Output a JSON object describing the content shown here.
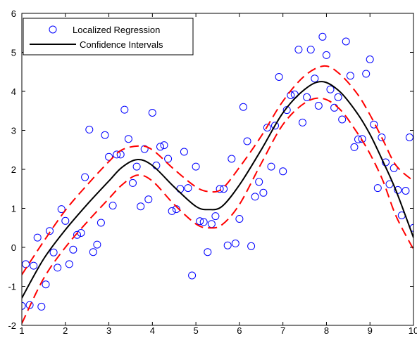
{
  "chart_data": {
    "type": "scatter",
    "title": "",
    "xlabel": "",
    "ylabel": "",
    "xlim": [
      1,
      10
    ],
    "ylim": [
      -2,
      6
    ],
    "grid": false,
    "legend": {
      "placement": "top-left",
      "entries": [
        "Localized Regression",
        "Confidence Intervals"
      ]
    },
    "x_ticks": [
      1,
      2,
      3,
      4,
      5,
      6,
      7,
      8,
      9,
      10
    ],
    "y_ticks": [
      -2,
      -1,
      0,
      1,
      2,
      3,
      4,
      5,
      6
    ],
    "colors": {
      "points": "#0000ff",
      "fit": "#000000",
      "interval": "#ff0000"
    },
    "series": [
      {
        "name": "Localized Regression",
        "type": "scatter",
        "marker": "open-circle",
        "points": [
          [
            1.0,
            -1.5
          ],
          [
            1.09,
            -0.43
          ],
          [
            1.18,
            -1.48
          ],
          [
            1.27,
            -0.47
          ],
          [
            1.36,
            0.25
          ],
          [
            1.45,
            -1.52
          ],
          [
            1.55,
            -0.95
          ],
          [
            1.64,
            0.42
          ],
          [
            1.73,
            -0.13
          ],
          [
            1.82,
            -0.52
          ],
          [
            1.91,
            0.98
          ],
          [
            2.0,
            0.68
          ],
          [
            2.09,
            -0.43
          ],
          [
            2.18,
            -0.06
          ],
          [
            2.27,
            0.32
          ],
          [
            2.36,
            0.37
          ],
          [
            2.45,
            1.8
          ],
          [
            2.55,
            3.02
          ],
          [
            2.64,
            -0.12
          ],
          [
            2.73,
            0.07
          ],
          [
            2.82,
            0.63
          ],
          [
            2.91,
            2.88
          ],
          [
            3.0,
            2.32
          ],
          [
            3.09,
            1.07
          ],
          [
            3.18,
            2.38
          ],
          [
            3.27,
            2.38
          ],
          [
            3.36,
            3.53
          ],
          [
            3.45,
            2.78
          ],
          [
            3.55,
            1.65
          ],
          [
            3.64,
            2.07
          ],
          [
            3.73,
            1.05
          ],
          [
            3.82,
            2.52
          ],
          [
            3.91,
            1.23
          ],
          [
            4.0,
            3.45
          ],
          [
            4.09,
            2.1
          ],
          [
            4.18,
            2.58
          ],
          [
            4.27,
            2.62
          ],
          [
            4.36,
            2.27
          ],
          [
            4.45,
            0.93
          ],
          [
            4.55,
            0.98
          ],
          [
            4.64,
            1.5
          ],
          [
            4.73,
            2.45
          ],
          [
            4.82,
            1.52
          ],
          [
            4.91,
            -0.72
          ],
          [
            5.0,
            2.07
          ],
          [
            5.09,
            0.67
          ],
          [
            5.18,
            0.65
          ],
          [
            5.27,
            -0.12
          ],
          [
            5.36,
            0.6
          ],
          [
            5.45,
            0.8
          ],
          [
            5.55,
            1.5
          ],
          [
            5.64,
            1.5
          ],
          [
            5.73,
            0.05
          ],
          [
            5.82,
            2.27
          ],
          [
            5.91,
            0.1
          ],
          [
            6.0,
            0.73
          ],
          [
            6.09,
            3.6
          ],
          [
            6.18,
            2.72
          ],
          [
            6.27,
            0.03
          ],
          [
            6.36,
            1.3
          ],
          [
            6.45,
            1.68
          ],
          [
            6.55,
            1.4
          ],
          [
            6.64,
            3.07
          ],
          [
            6.73,
            2.07
          ],
          [
            6.82,
            3.12
          ],
          [
            6.91,
            4.37
          ],
          [
            7.0,
            1.95
          ],
          [
            7.09,
            3.52
          ],
          [
            7.18,
            3.9
          ],
          [
            7.27,
            3.92
          ],
          [
            7.36,
            5.07
          ],
          [
            7.45,
            3.2
          ],
          [
            7.55,
            3.85
          ],
          [
            7.64,
            5.07
          ],
          [
            7.73,
            4.33
          ],
          [
            7.82,
            3.63
          ],
          [
            7.91,
            5.4
          ],
          [
            8.0,
            4.93
          ],
          [
            8.09,
            4.05
          ],
          [
            8.18,
            3.58
          ],
          [
            8.27,
            3.85
          ],
          [
            8.36,
            3.28
          ],
          [
            8.45,
            5.28
          ],
          [
            8.55,
            4.4
          ],
          [
            8.64,
            2.57
          ],
          [
            8.73,
            2.77
          ],
          [
            8.82,
            2.78
          ],
          [
            8.91,
            4.45
          ],
          [
            9.0,
            4.82
          ],
          [
            9.09,
            3.15
          ],
          [
            9.18,
            1.52
          ],
          [
            9.27,
            2.82
          ],
          [
            9.36,
            2.18
          ],
          [
            9.45,
            1.62
          ],
          [
            9.55,
            2.03
          ],
          [
            9.64,
            1.47
          ],
          [
            9.73,
            0.82
          ],
          [
            9.82,
            1.45
          ],
          [
            9.91,
            2.82
          ],
          [
            10.0,
            0.5
          ]
        ]
      },
      {
        "name": "Confidence Intervals",
        "type": "line",
        "style": "solid",
        "role": "fit",
        "x": [
          1.0,
          1.5,
          2.0,
          2.5,
          3.0,
          3.3,
          3.65,
          4.0,
          4.5,
          5.0,
          5.3,
          5.6,
          6.0,
          6.5,
          7.0,
          7.5,
          7.9,
          8.3,
          8.7,
          9.0,
          9.3,
          9.6,
          10.0
        ],
        "y": [
          -1.3,
          -0.3,
          0.45,
          1.1,
          1.7,
          2.05,
          2.25,
          2.1,
          1.55,
          1.05,
          0.97,
          1.05,
          1.6,
          2.5,
          3.45,
          4.05,
          4.25,
          4.0,
          3.45,
          2.9,
          2.2,
          1.45,
          0.25
        ]
      },
      {
        "name": "Confidence Intervals",
        "type": "line",
        "style": "dashed",
        "role": "upper",
        "x": [
          1.0,
          1.5,
          2.0,
          2.5,
          3.0,
          3.3,
          3.7,
          4.0,
          4.5,
          5.0,
          5.3,
          5.6,
          6.0,
          6.5,
          7.0,
          7.5,
          7.95,
          8.3,
          8.7,
          9.0,
          9.3,
          9.6,
          10.0
        ],
        "y": [
          -0.7,
          0.15,
          0.95,
          1.6,
          2.2,
          2.5,
          2.6,
          2.5,
          2.0,
          1.55,
          1.43,
          1.5,
          2.05,
          2.85,
          3.75,
          4.4,
          4.65,
          4.45,
          3.95,
          3.4,
          2.75,
          2.1,
          1.7
        ]
      },
      {
        "name": "Confidence Intervals",
        "type": "line",
        "style": "dashed",
        "role": "lower",
        "x": [
          1.0,
          1.5,
          2.0,
          2.5,
          3.0,
          3.3,
          3.65,
          4.0,
          4.5,
          5.0,
          5.3,
          5.6,
          6.0,
          6.5,
          7.0,
          7.5,
          7.9,
          8.3,
          8.7,
          9.0,
          9.3,
          9.6,
          10.0
        ],
        "y": [
          -1.95,
          -0.8,
          0.0,
          0.65,
          1.25,
          1.6,
          1.85,
          1.7,
          1.1,
          0.6,
          0.5,
          0.58,
          1.1,
          2.15,
          3.15,
          3.7,
          3.82,
          3.55,
          2.95,
          2.4,
          1.7,
          0.8,
          -0.05
        ]
      }
    ]
  }
}
